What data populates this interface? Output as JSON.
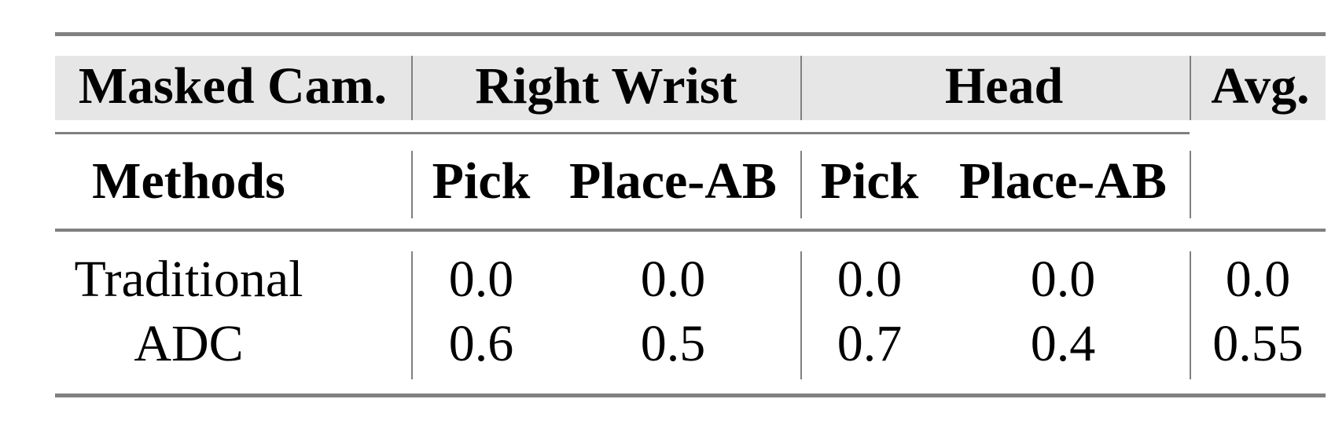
{
  "table": {
    "header_row1": {
      "masked_cam": "Masked Cam.",
      "group1": "Right Wrist",
      "group2": "Head",
      "avg": "Avg."
    },
    "header_row2": {
      "methods": "Methods",
      "cols": [
        "Pick",
        "Place-AB",
        "Pick",
        "Place-AB"
      ]
    },
    "rows": [
      {
        "method": "Traditional",
        "values": [
          "0.0",
          "0.0",
          "0.0",
          "0.0",
          "0.0"
        ]
      },
      {
        "method": "ADC",
        "values": [
          "0.6",
          "0.5",
          "0.7",
          "0.4",
          "0.55"
        ]
      }
    ]
  },
  "colors": {
    "header_band": "#e6e6e6",
    "rules": "#808080"
  }
}
